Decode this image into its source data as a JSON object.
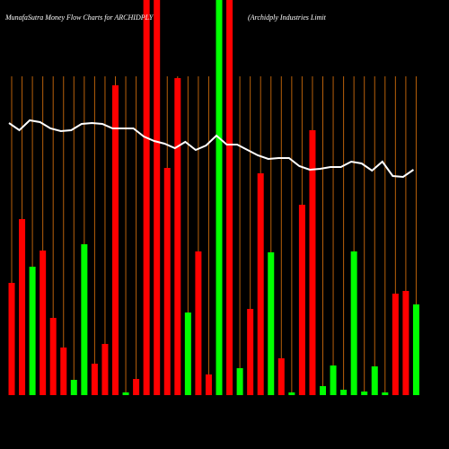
{
  "chart_data": {
    "type": "bar",
    "title": "MunafaSutra  Money Flow  Charts for ARCHIDPLY",
    "subtitle": "(Archidply Industries Limit",
    "ylim": [
      0,
      440
    ],
    "values": [
      125,
      196,
      143,
      161,
      86,
      53,
      17,
      168,
      35,
      57,
      345,
      3,
      18,
      440,
      440,
      253,
      353,
      92,
      160,
      23,
      440,
      440,
      30,
      96,
      247,
      159,
      41,
      3,
      212,
      295,
      10,
      33,
      6,
      160,
      4,
      32,
      3,
      113,
      116,
      101
    ],
    "colors": [
      "#ff0000",
      "#ff0000",
      "#00ff00",
      "#ff0000",
      "#ff0000",
      "#ff0000",
      "#00ff00",
      "#00ff00",
      "#ff0000",
      "#ff0000",
      "#ff0000",
      "#00ff00",
      "#ff0000",
      "#ff0000",
      "#ff0000",
      "#ff0000",
      "#ff0000",
      "#00ff00",
      "#ff0000",
      "#ff0000",
      "#00ff00",
      "#ff0000",
      "#00ff00",
      "#ff0000",
      "#ff0000",
      "#00ff00",
      "#ff0000",
      "#00ff00",
      "#ff0000",
      "#ff0000",
      "#00ff00",
      "#00ff00",
      "#00ff00",
      "#00ff00",
      "#00ff00",
      "#00ff00",
      "#00ff00",
      "#ff0000",
      "#ff0000",
      "#00ff00"
    ],
    "line": {
      "color": "#ffffff",
      "values": [
        303,
        295,
        306,
        304,
        297,
        294,
        295,
        302,
        303,
        302,
        297,
        297,
        297,
        288,
        283,
        280,
        275,
        282,
        273,
        278,
        289,
        279,
        279,
        273,
        267,
        263,
        264,
        264,
        255,
        251,
        252,
        254,
        254,
        260,
        258,
        250,
        260,
        244,
        243,
        251
      ]
    }
  }
}
